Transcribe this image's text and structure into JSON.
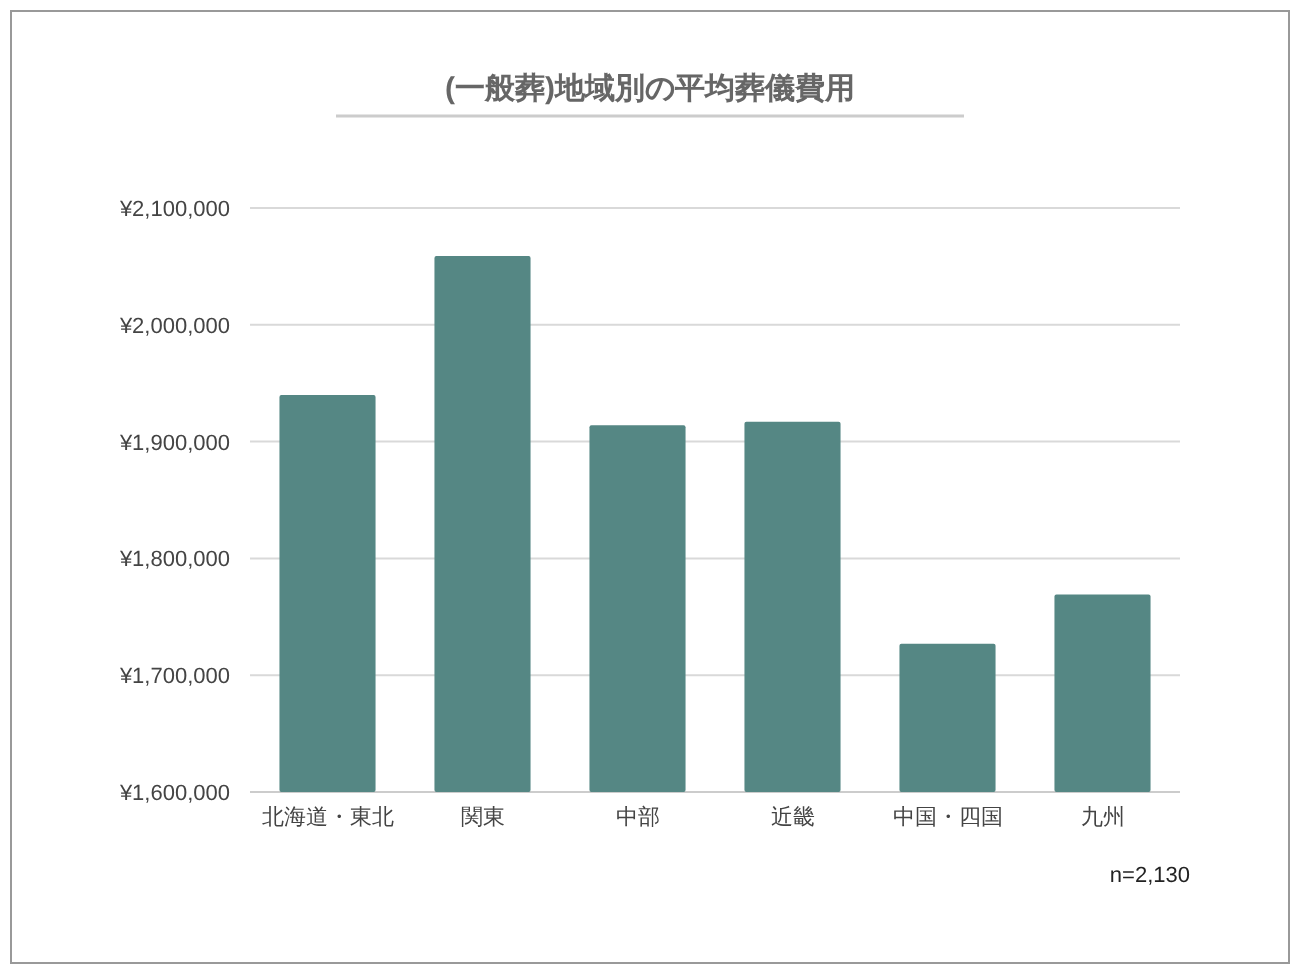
{
  "chart_data": {
    "type": "bar",
    "title": "(一般葬)地域別の平均葬儀費用",
    "categories": [
      "北海道・東北",
      "関東",
      "中部",
      "近畿",
      "中国・四国",
      "九州"
    ],
    "values": [
      1940000,
      2059000,
      1914000,
      1917000,
      1727000,
      1769000
    ],
    "color": "#558784",
    "ylim": [
      1600000,
      2100000
    ],
    "yticks": [
      {
        "value": 1600000,
        "label": "¥1,600,000"
      },
      {
        "value": 1700000,
        "label": "¥1,700,000"
      },
      {
        "value": 1800000,
        "label": "¥1,800,000"
      },
      {
        "value": 1900000,
        "label": "¥1,900,000"
      },
      {
        "value": 2000000,
        "label": "¥2,000,000"
      },
      {
        "value": 2100000,
        "label": "¥2,100,000"
      }
    ],
    "grid": "y",
    "annotations": [
      "n=2,130"
    ]
  }
}
